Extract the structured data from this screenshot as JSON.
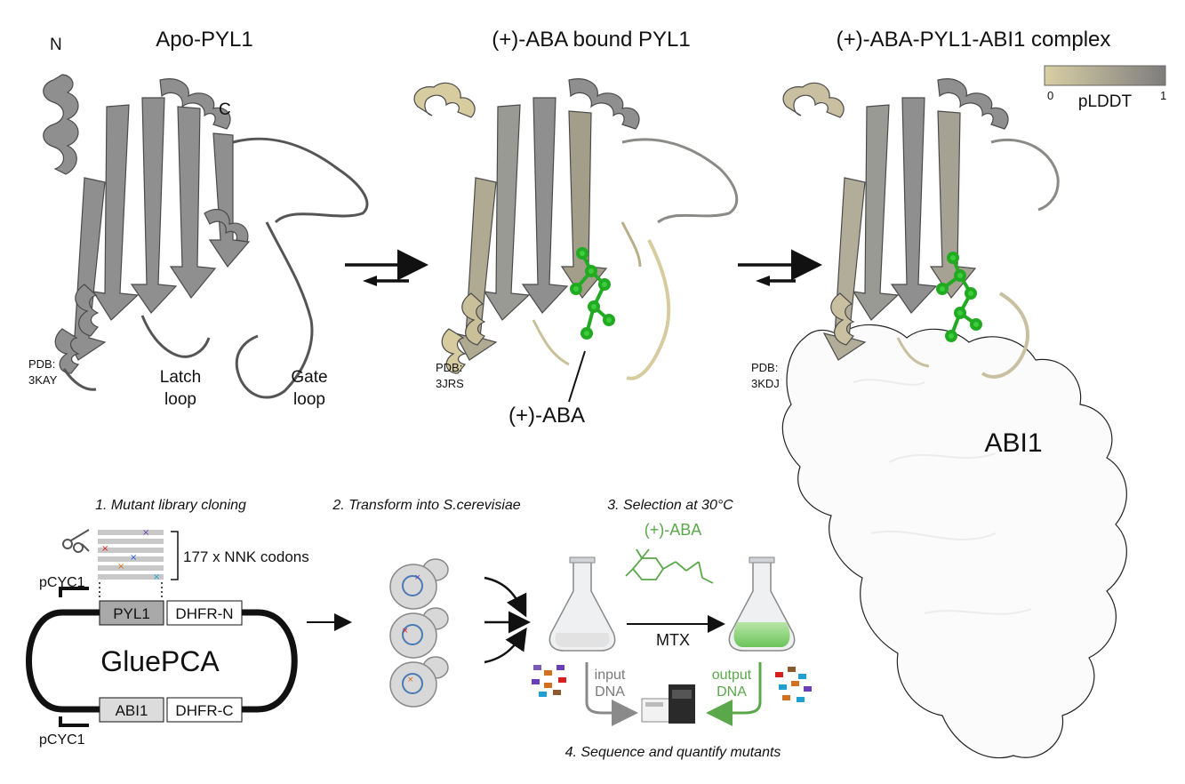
{
  "top": {
    "apo": {
      "title": "Apo-PYL1",
      "n_label": "N",
      "c_label": "C",
      "pdb_label": "PDB:",
      "pdb_id": "3KAY",
      "latch_line1": "Latch",
      "latch_line2": "loop",
      "gate_line1": "Gate",
      "gate_line2": "loop"
    },
    "bound": {
      "title": "(+)-ABA bound PYL1",
      "pdb_label": "PDB:",
      "pdb_id": "3JRS",
      "ligand_label": "(+)-ABA"
    },
    "complex": {
      "title": "(+)-ABA-PYL1-ABI1 complex",
      "pdb_label": "PDB:",
      "pdb_id": "3KDJ",
      "surface_label": "ABI1"
    },
    "colorbar": {
      "label": "pLDDT",
      "min": "0",
      "max": "1",
      "color_low": "#d9cfa4",
      "color_high": "#7d7d7d"
    },
    "colors": {
      "protein": "#8c8c8c",
      "ligand": "#3ccc3c"
    }
  },
  "workflow": {
    "step1": "1. Mutant library cloning",
    "step2": "2. Transform into S.cerevisiae",
    "step3": "3. Selection at 30°C",
    "step4": "4. Sequence and quantify mutants",
    "codons": "177 x NNK codons",
    "promoter_top": "pCYC1",
    "promoter_bottom": "pCYC1",
    "box_pyl1": "PYL1",
    "box_dhfr_n": "DHFR-N",
    "box_abi1": "ABI1",
    "box_dhfr_c": "DHFR-C",
    "plasmid": "GluePCA",
    "aba": "(+)-ABA",
    "mtx": "MTX",
    "input_line1": "input",
    "input_line2": "DNA",
    "output_line1": "output",
    "output_line2": "DNA",
    "colors": {
      "selection_green": "#5aa84a",
      "input_gray": "#7a7a7a"
    }
  }
}
